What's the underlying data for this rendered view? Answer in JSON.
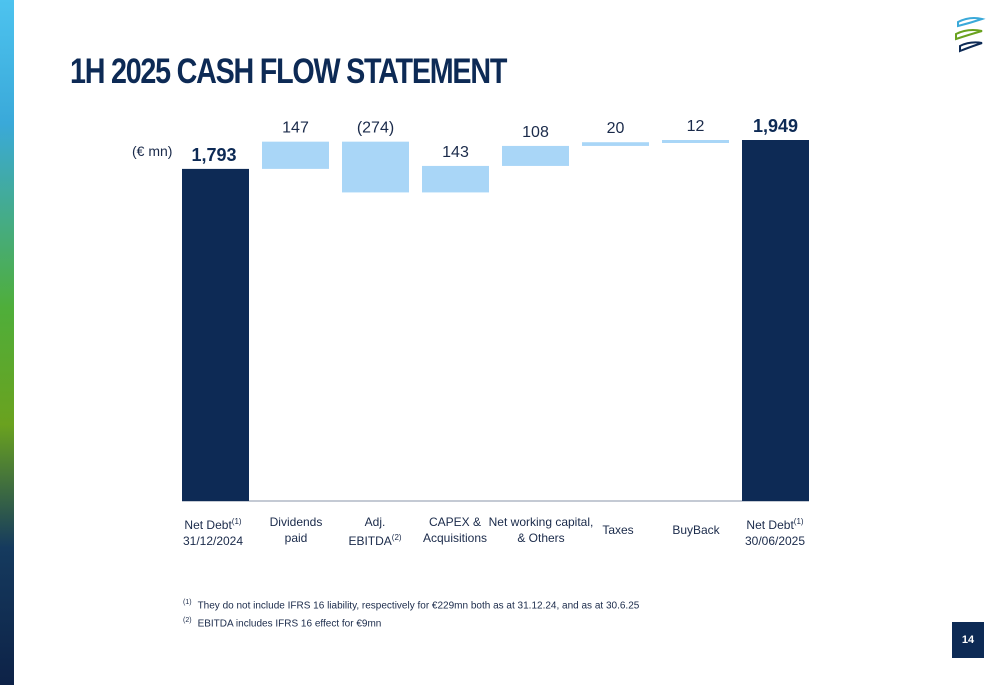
{
  "slide": {
    "title": "1H 2025 CASH FLOW STATEMENT",
    "unit_label": "(€ mn)",
    "page_number": "14"
  },
  "colors": {
    "total_bar": "#0d2a55",
    "step_bar": "#a9d6f7",
    "title": "#0d2a55"
  },
  "chart_data": {
    "type": "bar",
    "subtype": "waterfall",
    "categories": [
      "Net Debt(1) 31/12/2024",
      "Dividends paid",
      "Adj. EBITDA(2)",
      "CAPEX & Acquisitions",
      "Net working capital, & Others",
      "Taxes",
      "BuyBack",
      "Net Debt(1) 30/06/2025"
    ],
    "values": [
      1793,
      147,
      -274,
      143,
      108,
      20,
      12,
      1949
    ],
    "bar_kinds": [
      "total",
      "step",
      "step",
      "step",
      "step",
      "step",
      "step",
      "total"
    ],
    "data_labels": [
      "1,793",
      "147",
      "(274)",
      "143",
      "108",
      "20",
      "12",
      "1,949"
    ],
    "ylim": [
      0,
      1949
    ],
    "xlabel": "",
    "ylabel": "",
    "grid": false,
    "legend": "none"
  },
  "labels": {
    "cat0": {
      "line1": "Net Debt",
      "sup": "(1)",
      "line2": "31/12/2024"
    },
    "cat1": {
      "line1": "Dividends",
      "line2": "paid"
    },
    "cat2": {
      "line1": "Adj.",
      "line2": "EBITDA",
      "sup": "(2)"
    },
    "cat3": {
      "line1": "CAPEX &",
      "line2": "Acquisitions"
    },
    "cat4": {
      "line1": "Net working capital,",
      "line2": "& Others"
    },
    "cat5": {
      "line1": "Taxes"
    },
    "cat6": {
      "line1": "BuyBack"
    },
    "cat7": {
      "line1": "Net Debt",
      "sup": "(1)",
      "line2": "30/06/2025"
    }
  },
  "footnotes": [
    {
      "mark": "(1)",
      "text": "They do not include IFRS 16 liability, respectively for €229mn both as at 31.12.24, and as at 30.6.25"
    },
    {
      "mark": "(2)",
      "text": "EBITDA includes IFRS 16 effect for €9mn"
    }
  ]
}
